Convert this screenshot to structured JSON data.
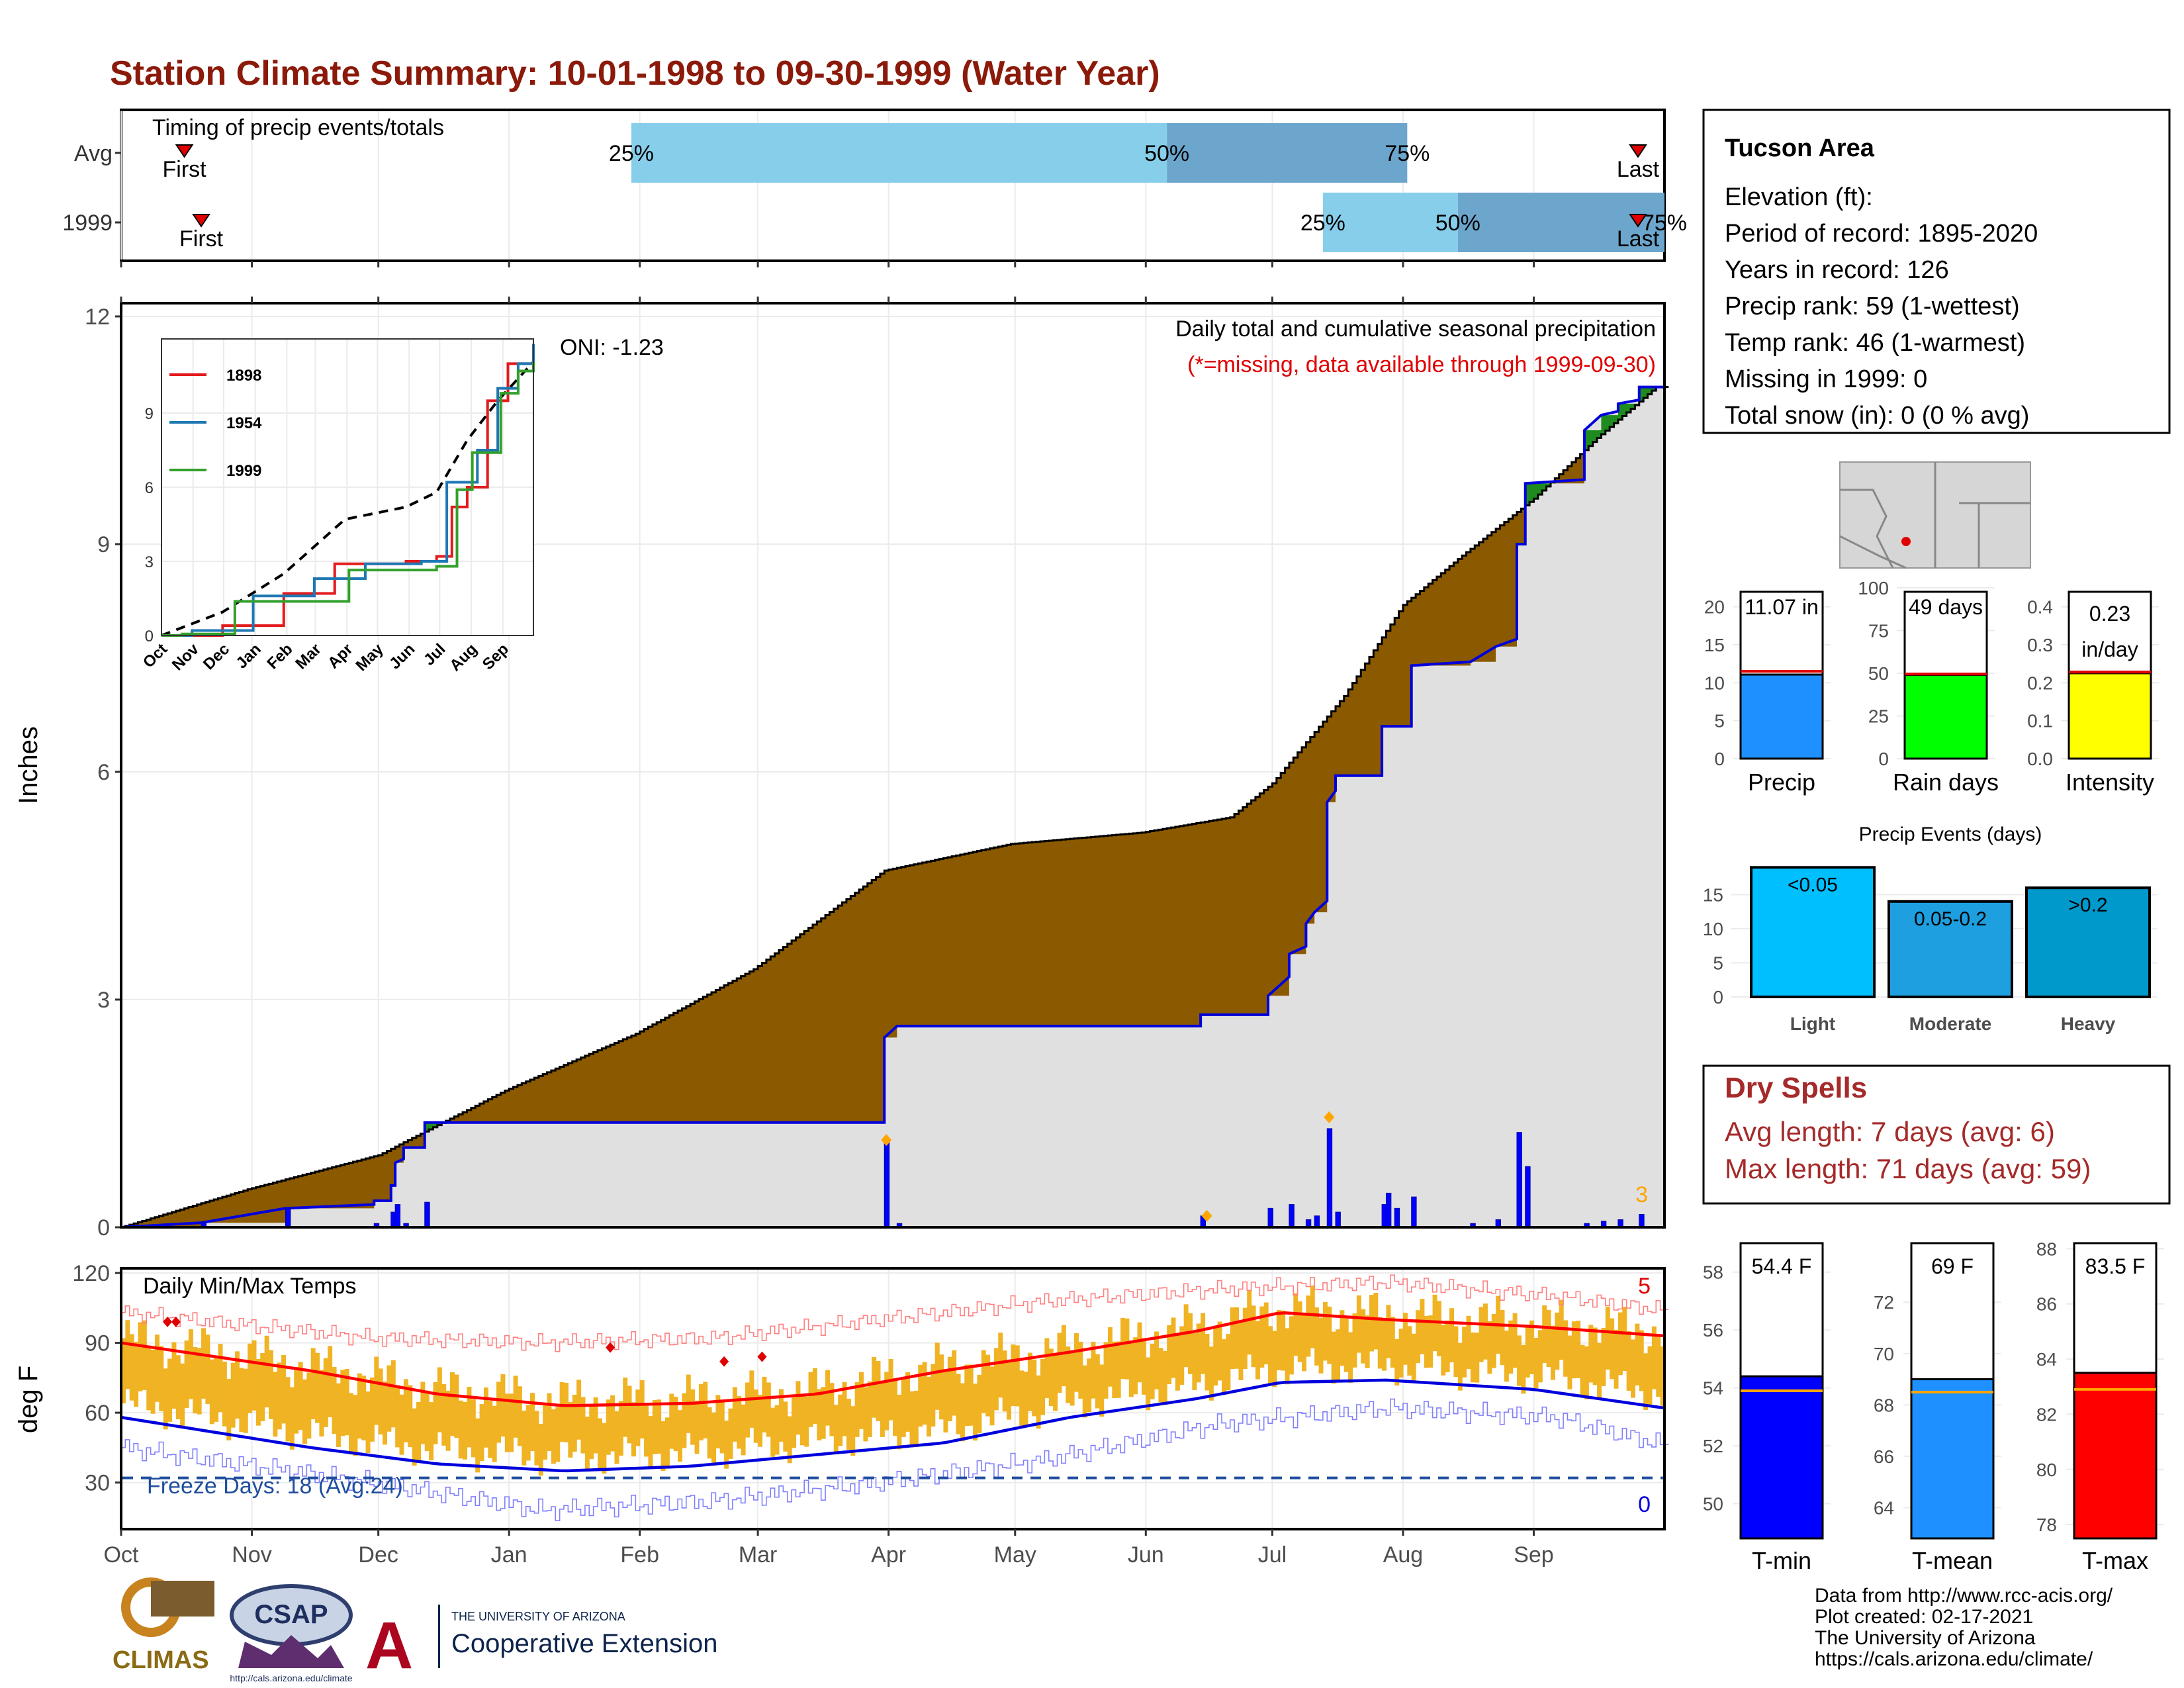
{
  "title": "Station Climate Summary: 10-01-1998 to 09-30-1999 (Water Year)",
  "months": [
    "Oct",
    "Nov",
    "Dec",
    "Jan",
    "Feb",
    "Mar",
    "Apr",
    "May",
    "Jun",
    "Jul",
    "Aug",
    "Sep"
  ],
  "timing": {
    "label": "Timing of precip events/totals",
    "rows": [
      {
        "name": "Avg",
        "first_day": 15,
        "last_day": 362,
        "p25": 121,
        "p50": 248,
        "p75": 305
      },
      {
        "name": "1999",
        "first_day": 19,
        "last_day": 367,
        "p25": 285,
        "p50": 317,
        "p75": 366
      }
    ],
    "first_label": "First",
    "last_label": "Last",
    "p25_label": "25%",
    "p50_label": "50%",
    "p75_label": "75%"
  },
  "precip": {
    "ylabel": "Inches",
    "oni": "ONI: -1.23",
    "heading": "Daily total and cumulative seasonal precipitation",
    "missing_note": "(*=missing, data available through 1999-09-30)",
    "count_label": "3",
    "ylim": [
      0,
      12
    ],
    "yticks": [
      0,
      3,
      6,
      9,
      12
    ],
    "avg_cumulative": [
      [
        0,
        0
      ],
      [
        30,
        0.5
      ],
      [
        61,
        0.95
      ],
      [
        91,
        1.8
      ],
      [
        122,
        2.55
      ],
      [
        150,
        3.4
      ],
      [
        181,
        4.7
      ],
      [
        211,
        5.05
      ],
      [
        242,
        5.2
      ],
      [
        263,
        5.4
      ],
      [
        273,
        5.85
      ],
      [
        290,
        7.0
      ],
      [
        304,
        8.2
      ],
      [
        318,
        8.85
      ],
      [
        335,
        9.6
      ],
      [
        350,
        10.4
      ],
      [
        364,
        11.07
      ]
    ],
    "year_cumulative": [
      [
        0,
        0
      ],
      [
        19,
        0.06
      ],
      [
        39,
        0.25
      ],
      [
        60,
        0.3
      ],
      [
        60,
        0.35
      ],
      [
        64,
        0.35
      ],
      [
        64,
        0.55
      ],
      [
        65,
        0.55
      ],
      [
        65,
        0.85
      ],
      [
        67,
        0.9
      ],
      [
        67,
        1.05
      ],
      [
        72,
        1.05
      ],
      [
        72,
        1.38
      ],
      [
        181,
        1.38
      ],
      [
        181,
        2.5
      ],
      [
        184,
        2.65
      ],
      [
        256,
        2.65
      ],
      [
        256,
        2.8
      ],
      [
        272,
        2.8
      ],
      [
        272,
        3.05
      ],
      [
        277,
        3.3
      ],
      [
        277,
        3.6
      ],
      [
        281,
        3.7
      ],
      [
        281,
        4.0
      ],
      [
        283,
        4.15
      ],
      [
        286,
        4.3
      ],
      [
        286,
        5.6
      ],
      [
        288,
        5.75
      ],
      [
        288,
        5.95
      ],
      [
        299,
        5.95
      ],
      [
        299,
        6.6
      ],
      [
        306,
        6.6
      ],
      [
        306,
        7.4
      ],
      [
        320,
        7.45
      ],
      [
        326,
        7.65
      ],
      [
        331,
        7.75
      ],
      [
        331,
        9.0
      ],
      [
        333,
        9.0
      ],
      [
        333,
        9.8
      ],
      [
        347,
        9.85
      ],
      [
        347,
        10.5
      ],
      [
        351,
        10.7
      ],
      [
        355,
        10.75
      ],
      [
        355,
        10.85
      ],
      [
        360,
        10.9
      ],
      [
        360,
        11.07
      ],
      [
        366,
        11.07
      ]
    ],
    "daily_bars": [
      [
        19,
        0.06
      ],
      [
        39,
        0.25
      ],
      [
        60,
        0.05
      ],
      [
        64,
        0.2
      ],
      [
        65,
        0.3
      ],
      [
        67,
        0.05
      ],
      [
        72,
        0.33
      ],
      [
        181,
        1.12
      ],
      [
        184,
        0.05
      ],
      [
        256,
        0.15
      ],
      [
        272,
        0.25
      ],
      [
        277,
        0.3
      ],
      [
        281,
        0.1
      ],
      [
        283,
        0.15
      ],
      [
        286,
        1.3
      ],
      [
        288,
        0.2
      ],
      [
        299,
        0.3
      ],
      [
        300,
        0.45
      ],
      [
        302,
        0.25
      ],
      [
        306,
        0.4
      ],
      [
        320,
        0.05
      ],
      [
        326,
        0.1
      ],
      [
        331,
        1.25
      ],
      [
        333,
        0.8
      ],
      [
        347,
        0.05
      ],
      [
        351,
        0.08
      ],
      [
        355,
        0.1
      ],
      [
        360,
        0.17
      ]
    ],
    "flags": [
      [
        181,
        1.15
      ],
      [
        257,
        0.15
      ],
      [
        286,
        1.45
      ]
    ],
    "brown": "#8B5A00",
    "green": "#1E8B1E",
    "fill": "#E0E0E0",
    "line": "#0000DD"
  },
  "inset": {
    "ylim": [
      0,
      12
    ],
    "yticks": [
      0,
      3,
      6,
      9
    ],
    "months": [
      "Oct",
      "Nov",
      "Dec",
      "Jan",
      "Feb",
      "Mar",
      "Apr",
      "May",
      "Jun",
      "Jul",
      "Aug",
      "Sep"
    ],
    "series": [
      {
        "name": "1898",
        "color": "#E31A1C",
        "points": [
          [
            0,
            0
          ],
          [
            60,
            0.4
          ],
          [
            120,
            1.7
          ],
          [
            170,
            2.9
          ],
          [
            240,
            3.0
          ],
          [
            270,
            3.2
          ],
          [
            285,
            5.2
          ],
          [
            300,
            6.0
          ],
          [
            320,
            9.5
          ],
          [
            340,
            11.0
          ],
          [
            365,
            11.3
          ]
        ]
      },
      {
        "name": "1954",
        "color": "#1F78B4",
        "points": [
          [
            0,
            0
          ],
          [
            30,
            0.2
          ],
          [
            90,
            1.6
          ],
          [
            150,
            2.3
          ],
          [
            200,
            2.9
          ],
          [
            255,
            3.0
          ],
          [
            280,
            6.2
          ],
          [
            310,
            7.5
          ],
          [
            330,
            10.0
          ],
          [
            350,
            11.0
          ],
          [
            365,
            11.8
          ]
        ]
      },
      {
        "name": "1999",
        "color": "#33A02C",
        "points": [
          [
            0,
            0
          ],
          [
            20,
            0.06
          ],
          [
            72,
            1.38
          ],
          [
            180,
            1.38
          ],
          [
            184,
            2.65
          ],
          [
            270,
            2.8
          ],
          [
            290,
            5.9
          ],
          [
            305,
            7.4
          ],
          [
            333,
            9.8
          ],
          [
            350,
            10.7
          ],
          [
            365,
            11.07
          ]
        ]
      }
    ],
    "avg": [
      [
        0,
        0
      ],
      [
        60,
        0.95
      ],
      [
        120,
        2.5
      ],
      [
        180,
        4.7
      ],
      [
        240,
        5.2
      ],
      [
        270,
        5.8
      ],
      [
        300,
        7.9
      ],
      [
        330,
        9.5
      ],
      [
        365,
        11.07
      ]
    ]
  },
  "temps": {
    "ylabel": "deg F",
    "label": "Daily Min/Max Temps",
    "freeze_label": "Freeze Days: 18 (Avg:24)",
    "max_count": "5",
    "min_count": "0",
    "ylim": [
      10,
      122
    ],
    "yticks": [
      30,
      60,
      90,
      120
    ],
    "freeze_line": 32,
    "avg_max": [
      [
        0,
        90
      ],
      [
        45,
        78
      ],
      [
        75,
        68
      ],
      [
        105,
        63
      ],
      [
        135,
        64
      ],
      [
        165,
        68
      ],
      [
        195,
        78
      ],
      [
        225,
        86
      ],
      [
        255,
        95
      ],
      [
        275,
        103
      ],
      [
        300,
        100
      ],
      [
        335,
        97
      ],
      [
        366,
        93
      ]
    ],
    "avg_min": [
      [
        0,
        58
      ],
      [
        45,
        45
      ],
      [
        75,
        38
      ],
      [
        105,
        35
      ],
      [
        135,
        37
      ],
      [
        165,
        42
      ],
      [
        195,
        47
      ],
      [
        225,
        58
      ],
      [
        255,
        66
      ],
      [
        275,
        73
      ],
      [
        300,
        74
      ],
      [
        335,
        70
      ],
      [
        366,
        62
      ]
    ],
    "rec_high": [
      [
        0,
        103
      ],
      [
        60,
        92
      ],
      [
        100,
        90
      ],
      [
        140,
        92
      ],
      [
        180,
        100
      ],
      [
        220,
        108
      ],
      [
        260,
        113
      ],
      [
        300,
        116
      ],
      [
        340,
        110
      ],
      [
        366,
        104
      ]
    ],
    "rec_low": [
      [
        0,
        45
      ],
      [
        60,
        30
      ],
      [
        100,
        18
      ],
      [
        140,
        22
      ],
      [
        180,
        30
      ],
      [
        220,
        40
      ],
      [
        260,
        55
      ],
      [
        300,
        62
      ],
      [
        340,
        58
      ],
      [
        366,
        46
      ]
    ],
    "flags": [
      [
        11,
        99
      ],
      [
        13,
        99
      ],
      [
        116,
        88
      ],
      [
        143,
        82
      ],
      [
        152,
        84
      ]
    ]
  },
  "station": {
    "name": "Tucson Area",
    "lines": [
      "Elevation (ft):",
      "Period of record: 1895-2020",
      "Years in record: 126",
      "Precip rank: 59 (1-wettest)",
      "Temp rank: 46 (1-warmest)",
      "Missing in 1999: 0",
      "Total snow (in): 0 (0 % avg)"
    ]
  },
  "mini_bars": [
    {
      "label": "Precip",
      "value_text": "11.07 in",
      "value": 11.07,
      "avg": 11.5,
      "ylim": [
        0,
        22.5
      ],
      "yticks": [
        "0",
        "5",
        "10",
        "15",
        "20"
      ],
      "ytick_vals": [
        0,
        5,
        10,
        15,
        20
      ],
      "color": "#1E90FF"
    },
    {
      "label": "Rain days",
      "value_text": "49 days",
      "value": 49,
      "avg": 49.5,
      "ylim": [
        0,
        100
      ],
      "yticks": [
        "0",
        "25",
        "50",
        "75",
        "100"
      ],
      "ytick_vals": [
        0,
        25,
        50,
        75,
        100
      ],
      "color": "#00FF00"
    },
    {
      "label": "Intensity",
      "value_text": "0.23 in/day",
      "value": 0.225,
      "avg": 0.228,
      "ylim": [
        0,
        0.45
      ],
      "yticks": [
        "0.0",
        "0.1",
        "0.2",
        "0.3",
        "0.4"
      ],
      "ytick_vals": [
        0,
        0.1,
        0.2,
        0.3,
        0.4
      ],
      "color": "#FFFF00"
    }
  ],
  "events": {
    "title": "Precip Events (days)",
    "ylim": [
      0,
      20
    ],
    "yticks": [
      0,
      5,
      10,
      15
    ],
    "bars": [
      {
        "label": "Light",
        "tag": "<0.05",
        "value": 19,
        "color": "#00BFFF"
      },
      {
        "label": "Moderate",
        "tag": "0.05-0.2",
        "value": 14,
        "color": "#1EA0E0"
      },
      {
        "label": "Heavy",
        "tag": ">0.2",
        "value": 16,
        "color": "#0099CC"
      }
    ]
  },
  "dry": {
    "title": "Dry Spells",
    "avg_line": "Avg length: 7 days (avg: 6)",
    "max_line": "Max length: 71 days (avg: 59)",
    "color": "#A52A2A"
  },
  "temp_bars": [
    {
      "label": "T-min",
      "value_text": "54.4 F",
      "value": 54.4,
      "avg": 53.9,
      "ylim": [
        48.8,
        59.0
      ],
      "yticks": [
        50,
        52,
        54,
        56,
        58
      ],
      "color": "#0000FF"
    },
    {
      "label": "T-mean",
      "value_text": "69 F",
      "value": 69.0,
      "avg": 68.5,
      "ylim": [
        62.8,
        74.3
      ],
      "yticks": [
        64,
        66,
        68,
        70,
        72
      ],
      "color": "#1E90FF"
    },
    {
      "label": "T-max",
      "value_text": "83.5 F",
      "value": 83.5,
      "avg": 82.9,
      "ylim": [
        77.5,
        88.2
      ],
      "yticks": [
        78,
        80,
        82,
        84,
        86,
        88
      ],
      "color": "#FF0000"
    }
  ],
  "footer": {
    "lines": [
      "Data from http://www.rcc-acis.org/",
      "Plot created: 02-17-2021",
      "The University of Arizona",
      "https://cals.arizona.edu/climate/"
    ],
    "climas": "CLIMAS",
    "csap": "CSAP",
    "csap_url": "http://cals.arizona.edu/climate",
    "ua_small": "THE UNIVERSITY OF ARIZONA",
    "ua_big": "Cooperative Extension"
  }
}
